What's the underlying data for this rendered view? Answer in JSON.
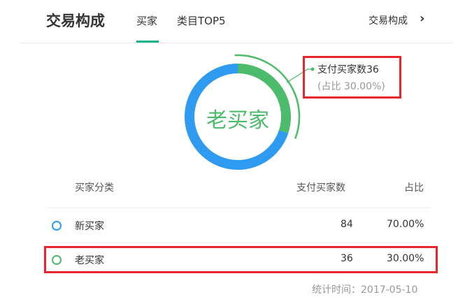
{
  "header": {
    "title": "交易构成",
    "tabs": [
      {
        "label": "买家",
        "active": true
      },
      {
        "label": "类目TOP5",
        "active": false
      }
    ],
    "link_label": "交易构成",
    "link_icon": "chevron-right-icon"
  },
  "chart_data": {
    "type": "pie",
    "variant": "donut",
    "center_label": "老买家",
    "categories": [
      "新买家",
      "老买家"
    ],
    "values": [
      84,
      36
    ],
    "colors": [
      "#2f9bf0",
      "#4cbb6c"
    ],
    "highlighted": "老买家",
    "tooltip": {
      "line1": "支付买家数36",
      "line2": "(占比 30.00%)"
    }
  },
  "table": {
    "headers": [
      "买家分类",
      "支付买家数",
      "占比"
    ],
    "rows": [
      {
        "name": "新买家",
        "count": "84",
        "pct": "70.00%",
        "color": "#2f9bf0"
      },
      {
        "name": "老买家",
        "count": "36",
        "pct": "30.00%",
        "color": "#4cbb6c"
      }
    ]
  },
  "footer": {
    "stat_time": "统计时间：2017-05-10"
  },
  "colors": {
    "accent": "#1bb38b",
    "highlight_box": "#e8262c"
  }
}
